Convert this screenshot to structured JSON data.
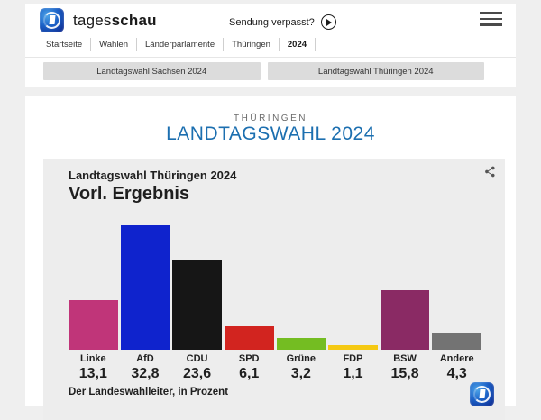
{
  "header": {
    "brand_regular": "tages",
    "brand_bold": "schau",
    "missed_broadcast_label": "Sendung verpasst?"
  },
  "breadcrumb": {
    "items": [
      {
        "label": "Startseite",
        "active": false
      },
      {
        "label": "Wahlen",
        "active": false
      },
      {
        "label": "Länderparlamente",
        "active": false
      },
      {
        "label": "Thüringen",
        "active": false
      },
      {
        "label": "2024",
        "active": true
      }
    ]
  },
  "tabs": [
    {
      "label": "Landtagswahl Sachsen 2024"
    },
    {
      "label": "Landtagswahl Thüringen 2024"
    }
  ],
  "page": {
    "kicker": "THÜRINGEN",
    "title": "LANDTAGSWAHL 2024",
    "title_color": "#1c6fb0"
  },
  "chart": {
    "title": "Landtagswahl Thüringen 2024",
    "subtitle": "Vorl. Ergebnis",
    "source": "Der Landeswahlleiter, in Prozent"
  },
  "chart_data": {
    "type": "bar",
    "title": "Landtagswahl Thüringen 2024",
    "subtitle": "Vorl. Ergebnis",
    "categories": [
      "Linke",
      "AfD",
      "CDU",
      "SPD",
      "Grüne",
      "FDP",
      "BSW",
      "Andere"
    ],
    "values": [
      13.1,
      32.8,
      23.6,
      6.1,
      3.2,
      1.1,
      15.8,
      4.3
    ],
    "value_labels": [
      "13,1",
      "32,8",
      "23,6",
      "6,1",
      "3,2",
      "1,1",
      "15,8",
      "4,3"
    ],
    "colors": [
      "#c03579",
      "#0f23cd",
      "#161616",
      "#d2241f",
      "#74bd22",
      "#f5c913",
      "#8a2a64",
      "#737373"
    ],
    "unit": "Prozent",
    "source": "Der Landeswahlleiter, in Prozent",
    "ylabel": "",
    "xlabel": "",
    "ylim": [
      0,
      35
    ],
    "grid": false,
    "legend": false
  }
}
